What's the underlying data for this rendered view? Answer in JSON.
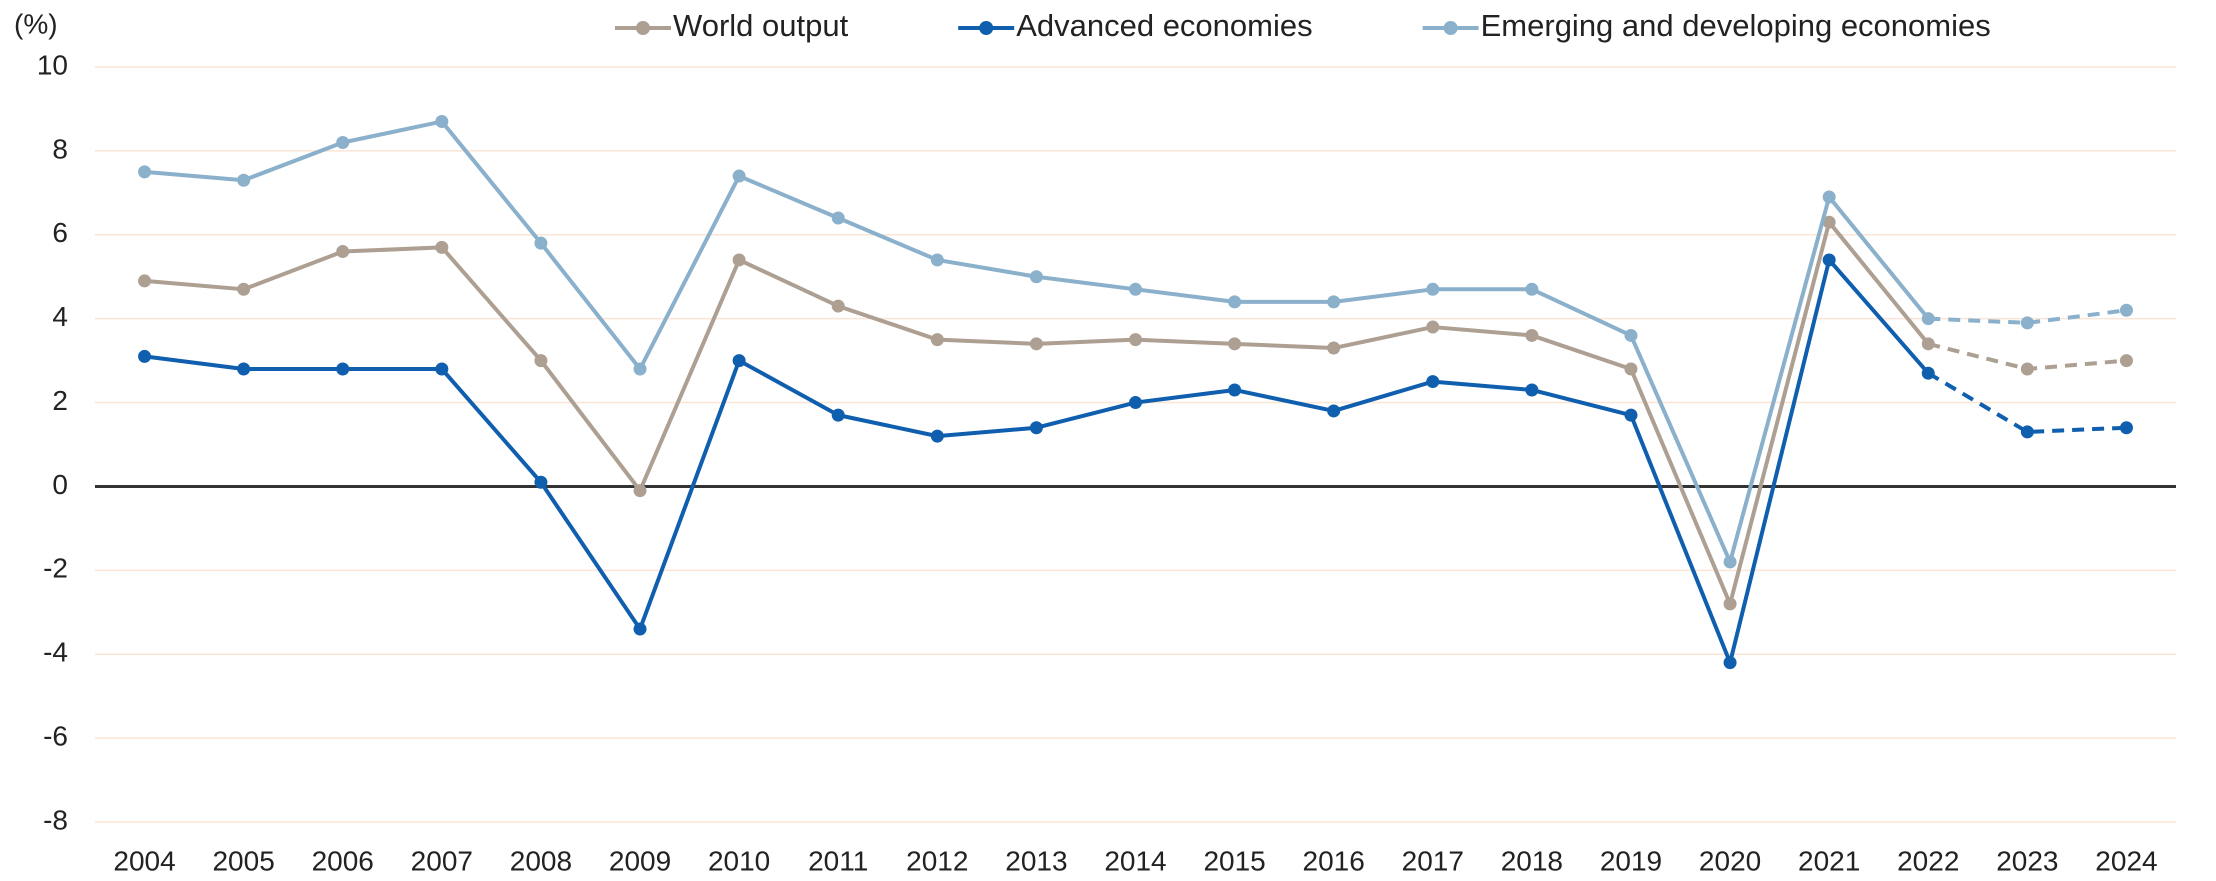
{
  "chart_data": {
    "type": "line",
    "y_label": "(%)",
    "categories": [
      "2004",
      "2005",
      "2006",
      "2007",
      "2008",
      "2009",
      "2010",
      "2011",
      "2012",
      "2013",
      "2014",
      "2015",
      "2016",
      "2017",
      "2018",
      "2019",
      "2020",
      "2021",
      "2022",
      "2023",
      "2024"
    ],
    "series": [
      {
        "name": "World output",
        "color": "#ad9f92",
        "values": [
          4.9,
          4.7,
          5.6,
          5.7,
          3.0,
          -0.1,
          5.4,
          4.3,
          3.5,
          3.4,
          3.5,
          3.4,
          3.3,
          3.8,
          3.6,
          2.8,
          -2.8,
          6.3,
          3.4,
          2.8,
          3.0
        ]
      },
      {
        "name": "Advanced economies",
        "color": "#0f5fae",
        "values": [
          3.1,
          2.8,
          2.8,
          2.8,
          0.1,
          -3.4,
          3.0,
          1.7,
          1.2,
          1.4,
          2.0,
          2.3,
          1.8,
          2.5,
          2.3,
          1.7,
          -4.2,
          5.4,
          2.7,
          1.3,
          1.4
        ]
      },
      {
        "name": "Emerging and developing economies",
        "color": "#8ab0cb",
        "values": [
          7.5,
          7.3,
          8.2,
          8.7,
          5.8,
          2.8,
          7.4,
          6.4,
          5.4,
          5.0,
          4.7,
          4.4,
          4.4,
          4.7,
          4.7,
          3.6,
          -1.8,
          6.9,
          4.0,
          3.9,
          4.2
        ]
      }
    ],
    "dashed_from": "2022",
    "ylim": [
      -8,
      10
    ],
    "yticks": [
      -8,
      -6,
      -4,
      -2,
      0,
      2,
      4,
      6,
      8,
      10
    ],
    "grid": true,
    "legend": "top"
  }
}
